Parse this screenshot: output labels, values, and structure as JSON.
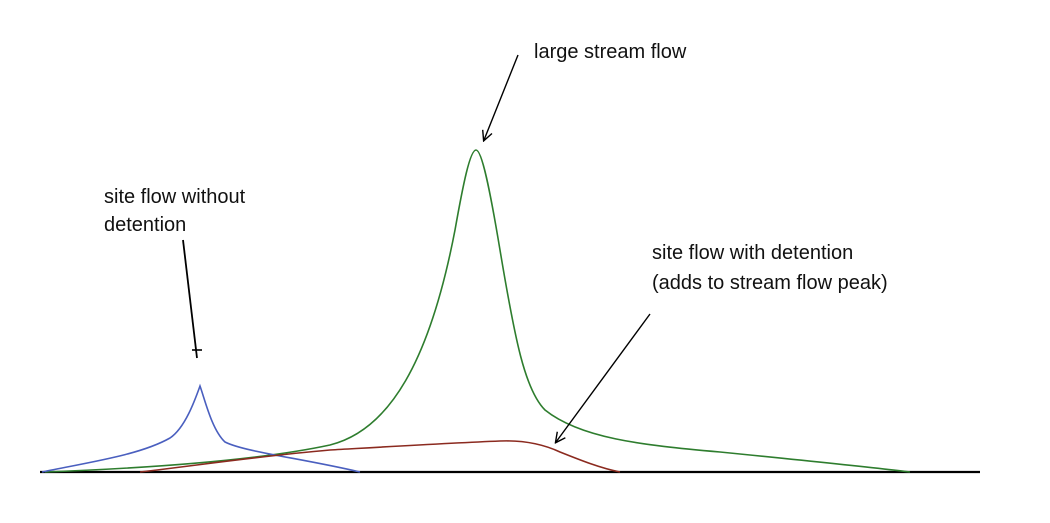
{
  "labels": {
    "large_stream_flow": "large stream flow",
    "site_without_detention_line1": "site flow without",
    "site_without_detention_line2": "detention",
    "site_with_detention_line1": "site flow with detention",
    "site_with_detention_line2": "(adds to stream flow peak)"
  },
  "colors": {
    "large_stream_flow": "#2e7d2e",
    "site_without_detention": "#4a5fbf",
    "site_with_detention": "#8b2a1f",
    "baseline": "#000000",
    "arrows": "#000000"
  }
}
